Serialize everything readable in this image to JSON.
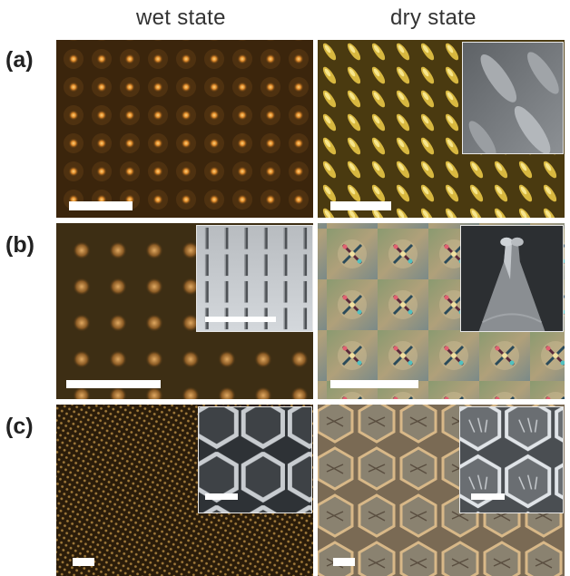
{
  "columns": {
    "wet": "wet state",
    "dry": "dry state"
  },
  "rows": {
    "a": "(a)",
    "b": "(b)",
    "c": "(c)"
  },
  "colors": {
    "wet_bg": "#2a1a08",
    "dot_orange": "#e89a3a",
    "dry_yellow": "#d8b840",
    "sem_gray": "#7a7e82",
    "honeycomb_tan": "#c9a878"
  }
}
